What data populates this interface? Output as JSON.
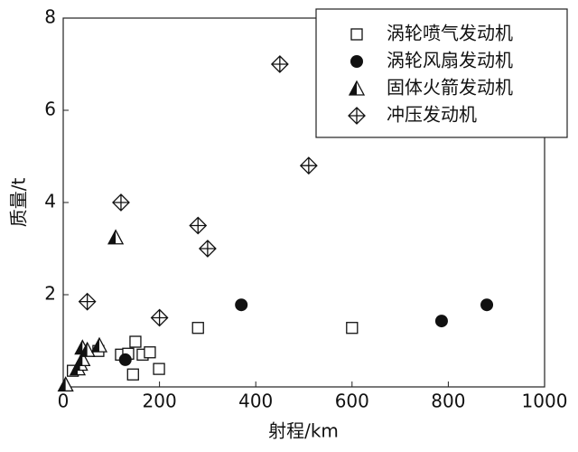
{
  "chart_data": {
    "type": "scatter",
    "xlabel": "射程/km",
    "ylabel": "质量/t",
    "xlim": [
      0,
      1000
    ],
    "ylim": [
      0,
      8
    ],
    "xticks": [
      0,
      200,
      400,
      600,
      800,
      1000
    ],
    "yticks": [
      2,
      4,
      6,
      8
    ],
    "legend": "upper right",
    "series": [
      {
        "name": "涡轮喷气发动机",
        "marker": "square",
        "color": "#111111",
        "x": [
          20,
          73,
          120,
          135,
          145,
          150,
          165,
          180,
          199,
          280,
          600
        ],
        "values": [
          0.35,
          0.78,
          0.7,
          0.72,
          0.27,
          0.98,
          0.7,
          0.75,
          0.39,
          1.28,
          1.28
        ]
      },
      {
        "name": "涡轮风扇发动机",
        "marker": "circle",
        "color": "#111111",
        "x": [
          129,
          370,
          786,
          880
        ],
        "values": [
          0.59,
          1.78,
          1.43,
          1.78
        ]
      },
      {
        "name": "固体火箭发动机",
        "marker": "half-triangle",
        "color": "#111111",
        "x": [
          5,
          30,
          35,
          40,
          40,
          50,
          75,
          109
        ],
        "values": [
          0.05,
          0.4,
          0.5,
          0.6,
          0.85,
          0.8,
          0.9,
          3.24
        ]
      },
      {
        "name": "冲压发动机",
        "marker": "crossed-diamond",
        "color": "#111111",
        "x": [
          50,
          120,
          200,
          280,
          300,
          450,
          510
        ],
        "values": [
          1.85,
          4.0,
          1.5,
          3.5,
          3.0,
          7.0,
          4.8
        ]
      }
    ]
  }
}
